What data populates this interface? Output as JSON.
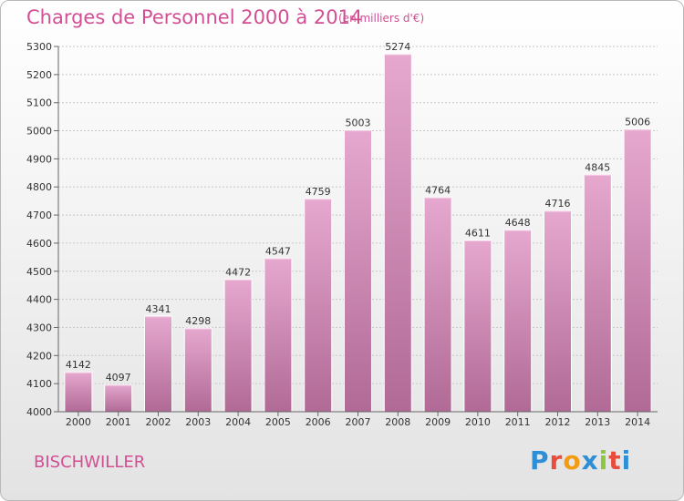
{
  "header": {
    "title": "Charges de Personnel 2000 à 2014",
    "unit": "(en milliers d'€)"
  },
  "footer": {
    "city": "BISCHWILLER",
    "logo": "Proxiti",
    "logo_colors": [
      "#2e8fd6",
      "#e84c3d",
      "#f39c12",
      "#2e8fd6",
      "#8dc63f",
      "#e84c3d",
      "#2e8fd6"
    ]
  },
  "chart_data": {
    "type": "bar",
    "title": "Charges de Personnel 2000 à 2014",
    "subtitle": "(en milliers d'€)",
    "categories": [
      "2000",
      "2001",
      "2002",
      "2003",
      "2004",
      "2005",
      "2006",
      "2007",
      "2008",
      "2009",
      "2010",
      "2011",
      "2012",
      "2013",
      "2014"
    ],
    "values": [
      4142,
      4097,
      4341,
      4298,
      4472,
      4547,
      4759,
      5003,
      5274,
      4764,
      4611,
      4648,
      4716,
      4845,
      5006
    ],
    "ylim": [
      4000,
      5300
    ],
    "yticks": [
      4000,
      4100,
      4200,
      4300,
      4400,
      4500,
      4600,
      4700,
      4800,
      4900,
      5000,
      5100,
      5200,
      5300
    ],
    "grid": true,
    "bar_color_top": "#e6a8cf",
    "bar_color_bottom": "#b06a95"
  }
}
